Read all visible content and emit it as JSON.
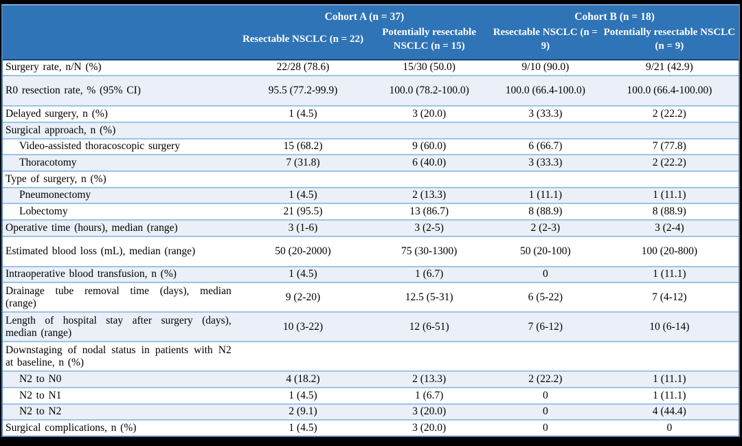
{
  "figure": {
    "type": "table",
    "description": "Surgical outcome table for resectable and potentially resectable NSCLC in Cohort A and Cohort B"
  },
  "colors": {
    "header_bg": "#2E74B6",
    "header_text": "#FFFFFF",
    "shaded_row_bg": "#EAEFF8",
    "row_divider": "#9CC3E5",
    "header_divider": "#17466E",
    "outer_border": "#4F81BD",
    "frame_bg": "#000000",
    "body_text": "#000000"
  },
  "table": {
    "header": {
      "groups": [
        {
          "label": "Cohort A (n = 37)",
          "span": 2
        },
        {
          "label": "Cohort B (n = 18)",
          "span": 2
        }
      ],
      "columns": [
        "Resectable NSCLC (n = 22)",
        "Potentially resectable NSCLC (n = 15)",
        "Resectable NSCLC (n = 9)",
        "Potentially resectable NSCLC (n = 9)"
      ]
    },
    "rows": [
      {
        "label": "Surgery rate, n/N (%)",
        "indent": false,
        "tall": false,
        "values": [
          "22/28 (78.6)",
          "15/30 (50.0)",
          "9/10 (90.0)",
          "9/21 (42.9)"
        ]
      },
      {
        "label": "R0 resection rate, % (95% CI)",
        "indent": false,
        "tall": true,
        "values": [
          "95.5 (77.2-99.9)",
          "100.0 (78.2-100.0)",
          "100.0 (66.4-100.0)",
          "100.0 (66.4-100.00)"
        ]
      },
      {
        "label": "Delayed surgery, n (%)",
        "indent": false,
        "tall": false,
        "values": [
          "1 (4.5)",
          "3 (20.0)",
          "3 (33.3)",
          "2 (22.2)"
        ]
      },
      {
        "label": "Surgical approach, n (%)",
        "indent": false,
        "tall": false,
        "values": [
          "",
          "",
          "",
          ""
        ]
      },
      {
        "label": "Video-assisted thoracoscopic surgery",
        "indent": true,
        "tall": false,
        "values": [
          "15 (68.2)",
          "9 (60.0)",
          "6 (66.7)",
          "7 (77.8)"
        ]
      },
      {
        "label": "Thoracotomy",
        "indent": true,
        "tall": false,
        "values": [
          "7 (31.8)",
          "6 (40.0)",
          "3 (33.3)",
          "2 (22.2)"
        ]
      },
      {
        "label": "Type of surgery, n (%)",
        "indent": false,
        "tall": false,
        "values": [
          "",
          "",
          "",
          ""
        ]
      },
      {
        "label": "Pneumonectomy",
        "indent": true,
        "tall": false,
        "values": [
          "1 (4.5)",
          "2 (13.3)",
          "1 (11.1)",
          "1 (11.1)"
        ]
      },
      {
        "label": "Lobectomy",
        "indent": true,
        "tall": false,
        "values": [
          "21 (95.5)",
          "13 (86.7)",
          "8 (88.9)",
          "8 (88.9)"
        ]
      },
      {
        "label": "Operative time (hours), median (range)",
        "indent": false,
        "tall": false,
        "values": [
          "3 (1-6)",
          "3 (2-5)",
          "2 (2-3)",
          "3 (2-4)"
        ]
      },
      {
        "label": "Estimated blood loss (mL), median (range)",
        "indent": false,
        "tall": true,
        "values": [
          "50 (20-2000)",
          "75 (30-1300)",
          "50 (20-100)",
          "100 (20-800)"
        ]
      },
      {
        "label": "Intraoperative blood transfusion, n (%)",
        "indent": false,
        "tall": false,
        "values": [
          "1 (4.5)",
          "1 (6.7)",
          "0",
          "1 (11.1)"
        ]
      },
      {
        "label": "Drainage tube removal time (days), median (range)",
        "indent": false,
        "tall": false,
        "values": [
          "9 (2-20)",
          "12.5 (5-31)",
          "6 (5-22)",
          "7 (4-12)"
        ]
      },
      {
        "label": "Length of hospital stay after surgery (days), median (range)",
        "indent": false,
        "tall": false,
        "values": [
          "10 (3-22)",
          "12 (6-51)",
          "7 (6-12)",
          "10 (6-14)"
        ]
      },
      {
        "label": "Downstaging of nodal status in patients with N2 at baseline, n (%)",
        "indent": false,
        "tall": false,
        "values": [
          "",
          "",
          "",
          ""
        ]
      },
      {
        "label": "N2 to N0",
        "indent": true,
        "tall": false,
        "values": [
          "4 (18.2)",
          "2 (13.3)",
          "2 (22.2)",
          "1 (11.1)"
        ]
      },
      {
        "label": "N2 to N1",
        "indent": true,
        "tall": false,
        "values": [
          "1 (4.5)",
          "1 (6.7)",
          "0",
          "1 (11.1)"
        ]
      },
      {
        "label": "N2 to N2",
        "indent": true,
        "tall": false,
        "values": [
          "2 (9.1)",
          "3 (20.0)",
          "0",
          "4 (44.4)"
        ]
      },
      {
        "label": "Surgical complications, n (%)",
        "indent": false,
        "tall": false,
        "values": [
          "1 (4.5)",
          "3 (20.0)",
          "0",
          "0"
        ]
      }
    ]
  }
}
